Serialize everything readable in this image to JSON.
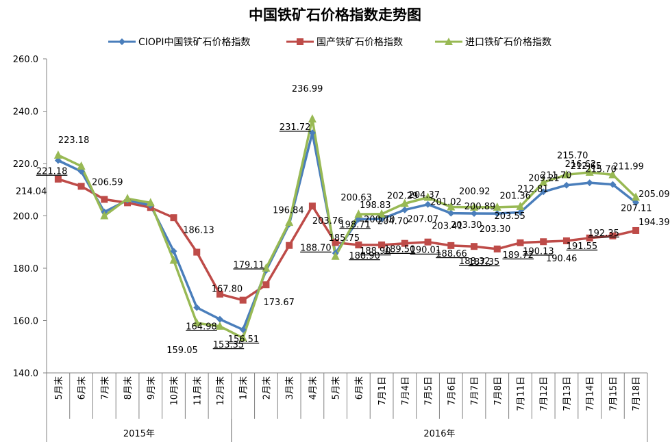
{
  "chart_data": {
    "type": "line",
    "title": "中国铁矿石价格指数走势图",
    "xlabel": "",
    "ylabel": "",
    "ylim": [
      140,
      260
    ],
    "yticks": [
      "140.0",
      "160.0",
      "180.0",
      "200.0",
      "220.0",
      "240.0",
      "260.0"
    ],
    "grid": false,
    "legend_position": "top",
    "categories": [
      "5月末",
      "6月末",
      "7月末",
      "8月末",
      "9月末",
      "10月末",
      "11月末",
      "12月末",
      "1月末",
      "2月末",
      "3月末",
      "4月末",
      "5月末",
      "6月末",
      "7月1日",
      "7月4日",
      "7月5日",
      "7月6日",
      "7月7日",
      "7月8日",
      "7月11日",
      "7月12日",
      "7月13日",
      "7月14日",
      "7月15日",
      "7月18日"
    ],
    "year_groups": [
      {
        "label": "2015年",
        "start": 0,
        "end": 7
      },
      {
        "label": "2016年",
        "start": 8,
        "end": 25
      }
    ],
    "series": [
      {
        "name": "CIOPI中国铁矿石价格指数",
        "color": "#4a7ebb",
        "marker": "diamond",
        "values": [
          221.18,
          217.0,
          201.5,
          206.0,
          204.0,
          186.5,
          164.98,
          160.5,
          156.51,
          179.11,
          196.84,
          231.72,
          185.75,
          198.71,
          198.83,
          202.29,
          204.37,
          201.02,
          200.92,
          200.89,
          201.36,
          209.21,
          211.7,
          212.65,
          211.99,
          205.09
        ]
      },
      {
        "name": "国产铁矿石价格指数",
        "color": "#be4b48",
        "marker": "square",
        "values": [
          214.04,
          211.3,
          206.3,
          205.0,
          203.2,
          199.3,
          186.13,
          170.1,
          167.8,
          173.67,
          188.7,
          203.76,
          189.8,
          188.9,
          188.9,
          189.5,
          190.01,
          188.66,
          188.32,
          187.35,
          189.72,
          190.13,
          190.46,
          191.55,
          192.35,
          194.39
        ]
      },
      {
        "name": "进口铁矿石价格指数",
        "color": "#98b954",
        "marker": "triangle",
        "values": [
          223.18,
          219.0,
          200.0,
          206.59,
          205.0,
          183.0,
          159.05,
          157.8,
          153.35,
          180.0,
          197.5,
          236.99,
          184.5,
          200.63,
          200.7,
          204.7,
          207.07,
          203.41,
          203.3,
          203.3,
          203.55,
          212.81,
          215.7,
          216.62,
          215.7,
          207.11
        ]
      }
    ],
    "data_labels": [
      {
        "text": "223.18",
        "series": 2,
        "index": 0
      },
      {
        "text": "221.18",
        "series": 0,
        "index": 0
      },
      {
        "text": "214.04",
        "series": 1,
        "index": 0
      },
      {
        "text": "206.59",
        "series": 2,
        "index": 3
      },
      {
        "text": "186.13",
        "series": 1,
        "index": 6
      },
      {
        "text": "164.98",
        "series": 0,
        "index": 6
      },
      {
        "text": "159.05",
        "series": 2,
        "index": 6
      },
      {
        "text": "167.80",
        "series": 1,
        "index": 8
      },
      {
        "text": "156.51",
        "series": 0,
        "index": 8
      },
      {
        "text": "153.35",
        "series": 2,
        "index": 8
      },
      {
        "text": "179.11",
        "series": 0,
        "index": 9
      },
      {
        "text": "173.67",
        "series": 1,
        "index": 9
      },
      {
        "text": "196.84",
        "series": 0,
        "index": 10
      },
      {
        "text": "188.70",
        "series": 1,
        "index": 10
      },
      {
        "text": "236.99",
        "series": 2,
        "index": 11
      },
      {
        "text": "231.72",
        "series": 0,
        "index": 11
      },
      {
        "text": "203.76",
        "series": 1,
        "index": 11
      },
      {
        "text": "185.75",
        "series": 0,
        "index": 12
      },
      {
        "text": "188.90",
        "series": 1,
        "index": 13
      },
      {
        "text": "200.63",
        "series": 2,
        "index": 13
      },
      {
        "text": "198.71",
        "series": 0,
        "index": 13
      },
      {
        "text": "200.70",
        "series": 2,
        "index": 14
      },
      {
        "text": "198.83",
        "series": 0,
        "index": 14
      },
      {
        "text": "188.90",
        "series": 1,
        "index": 14
      },
      {
        "text": "204.70",
        "series": 2,
        "index": 15
      },
      {
        "text": "202.29",
        "series": 0,
        "index": 15
      },
      {
        "text": "189.50",
        "series": 1,
        "index": 15
      },
      {
        "text": "207.07",
        "series": 2,
        "index": 16
      },
      {
        "text": "204.37",
        "series": 0,
        "index": 16
      },
      {
        "text": "190.01",
        "series": 1,
        "index": 16
      },
      {
        "text": "203.41",
        "series": 2,
        "index": 17
      },
      {
        "text": "201.02",
        "series": 0,
        "index": 17
      },
      {
        "text": "188.66",
        "series": 1,
        "index": 17
      },
      {
        "text": "203.30",
        "series": 2,
        "index": 18
      },
      {
        "text": "200.92",
        "series": 0,
        "index": 18
      },
      {
        "text": "188.32",
        "series": 1,
        "index": 18
      },
      {
        "text": "203.30",
        "series": 2,
        "index": 19
      },
      {
        "text": "200.89",
        "series": 0,
        "index": 19
      },
      {
        "text": "187.35",
        "series": 1,
        "index": 19
      },
      {
        "text": "203.55",
        "series": 2,
        "index": 20
      },
      {
        "text": "201.36",
        "series": 0,
        "index": 20
      },
      {
        "text": "189.72",
        "series": 1,
        "index": 20
      },
      {
        "text": "212.81",
        "series": 2,
        "index": 21
      },
      {
        "text": "209.21",
        "series": 0,
        "index": 21
      },
      {
        "text": "190.13",
        "series": 1,
        "index": 21
      },
      {
        "text": "215.70",
        "series": 2,
        "index": 22
      },
      {
        "text": "211.70",
        "series": 0,
        "index": 22
      },
      {
        "text": "190.46",
        "series": 1,
        "index": 22
      },
      {
        "text": "216.62",
        "series": 2,
        "index": 23
      },
      {
        "text": "212.65",
        "series": 0,
        "index": 23
      },
      {
        "text": "191.55",
        "series": 1,
        "index": 23
      },
      {
        "text": "215.70",
        "series": 2,
        "index": 24
      },
      {
        "text": "211.99",
        "series": 0,
        "index": 24
      },
      {
        "text": "192.35",
        "series": 1,
        "index": 24
      },
      {
        "text": "207.11",
        "series": 2,
        "index": 25
      },
      {
        "text": "205.09",
        "series": 0,
        "index": 25
      },
      {
        "text": "194.39",
        "series": 1,
        "index": 25
      }
    ]
  }
}
